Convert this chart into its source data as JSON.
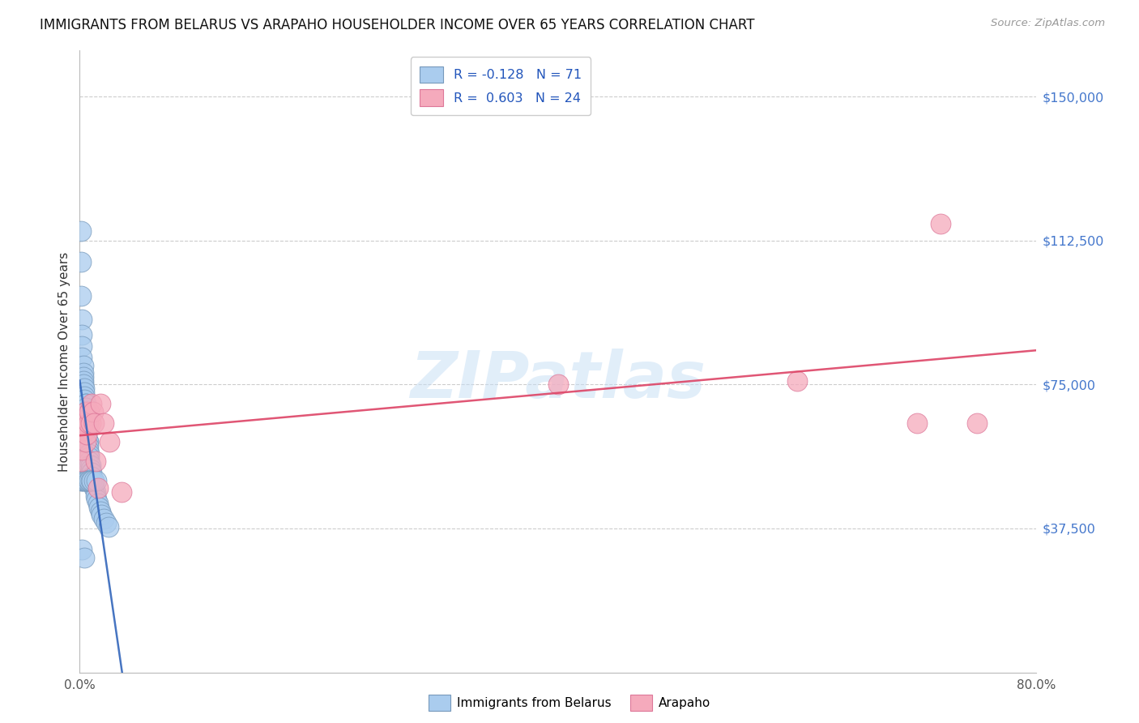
{
  "title": "IMMIGRANTS FROM BELARUS VS ARAPAHO HOUSEHOLDER INCOME OVER 65 YEARS CORRELATION CHART",
  "source": "Source: ZipAtlas.com",
  "ylabel": "Householder Income Over 65 years",
  "ytick_labels": [
    "$150,000",
    "$112,500",
    "$75,000",
    "$37,500"
  ],
  "ytick_values": [
    150000,
    112500,
    75000,
    37500
  ],
  "xlim": [
    0.0,
    0.8
  ],
  "ylim": [
    0,
    162000
  ],
  "legend_label_belarus": "R = -0.128   N = 71",
  "legend_label_arapaho": "R =  0.603   N = 24",
  "watermark": "ZIPatlas",
  "background_color": "#ffffff",
  "grid_color": "#cccccc",
  "belarus_color": "#aaccee",
  "belarus_edge": "#7799bb",
  "arapaho_color": "#f5aabc",
  "arapaho_edge": "#dd7799",
  "belarus_trend_color": "#3366bb",
  "arapaho_trend_color": "#dd4466",
  "belarus_points_x": [
    0.001,
    0.001,
    0.001,
    0.002,
    0.002,
    0.002,
    0.002,
    0.003,
    0.003,
    0.003,
    0.003,
    0.003,
    0.004,
    0.004,
    0.004,
    0.004,
    0.005,
    0.005,
    0.005,
    0.005,
    0.005,
    0.005,
    0.006,
    0.006,
    0.006,
    0.006,
    0.006,
    0.006,
    0.007,
    0.007,
    0.007,
    0.007,
    0.007,
    0.008,
    0.008,
    0.008,
    0.008,
    0.009,
    0.009,
    0.009,
    0.01,
    0.01,
    0.01,
    0.011,
    0.011,
    0.012,
    0.012,
    0.013,
    0.013,
    0.014,
    0.015,
    0.016,
    0.017,
    0.018,
    0.02,
    0.022,
    0.024,
    0.001,
    0.002,
    0.003,
    0.004,
    0.005,
    0.006,
    0.007,
    0.008,
    0.009,
    0.01,
    0.012,
    0.014,
    0.002,
    0.004
  ],
  "belarus_points_y": [
    115000,
    107000,
    98000,
    92000,
    88000,
    85000,
    82000,
    80000,
    78000,
    77000,
    76000,
    75000,
    74000,
    73000,
    72000,
    71000,
    70000,
    70000,
    69000,
    68000,
    67000,
    66000,
    66000,
    65000,
    64000,
    63000,
    62000,
    61000,
    60000,
    60000,
    59000,
    58000,
    57000,
    57000,
    56000,
    55000,
    54000,
    54000,
    53000,
    52000,
    52000,
    51000,
    50000,
    50000,
    49000,
    49000,
    48000,
    47000,
    46000,
    45000,
    44000,
    43000,
    42000,
    41000,
    40000,
    39000,
    38000,
    50000,
    50000,
    50000,
    50000,
    50000,
    50000,
    50000,
    50000,
    50000,
    50000,
    50000,
    50000,
    32000,
    30000
  ],
  "arapaho_points_x": [
    0.001,
    0.002,
    0.003,
    0.004,
    0.005,
    0.005,
    0.006,
    0.007,
    0.008,
    0.009,
    0.01,
    0.011,
    0.012,
    0.013,
    0.015,
    0.017,
    0.02,
    0.025,
    0.035,
    0.4,
    0.6,
    0.7,
    0.72,
    0.75
  ],
  "arapaho_points_y": [
    55000,
    58000,
    65000,
    63000,
    60000,
    68000,
    62000,
    65000,
    68000,
    65000,
    70000,
    68000,
    65000,
    55000,
    48000,
    70000,
    65000,
    60000,
    47000,
    75000,
    76000,
    65000,
    117000,
    65000
  ]
}
